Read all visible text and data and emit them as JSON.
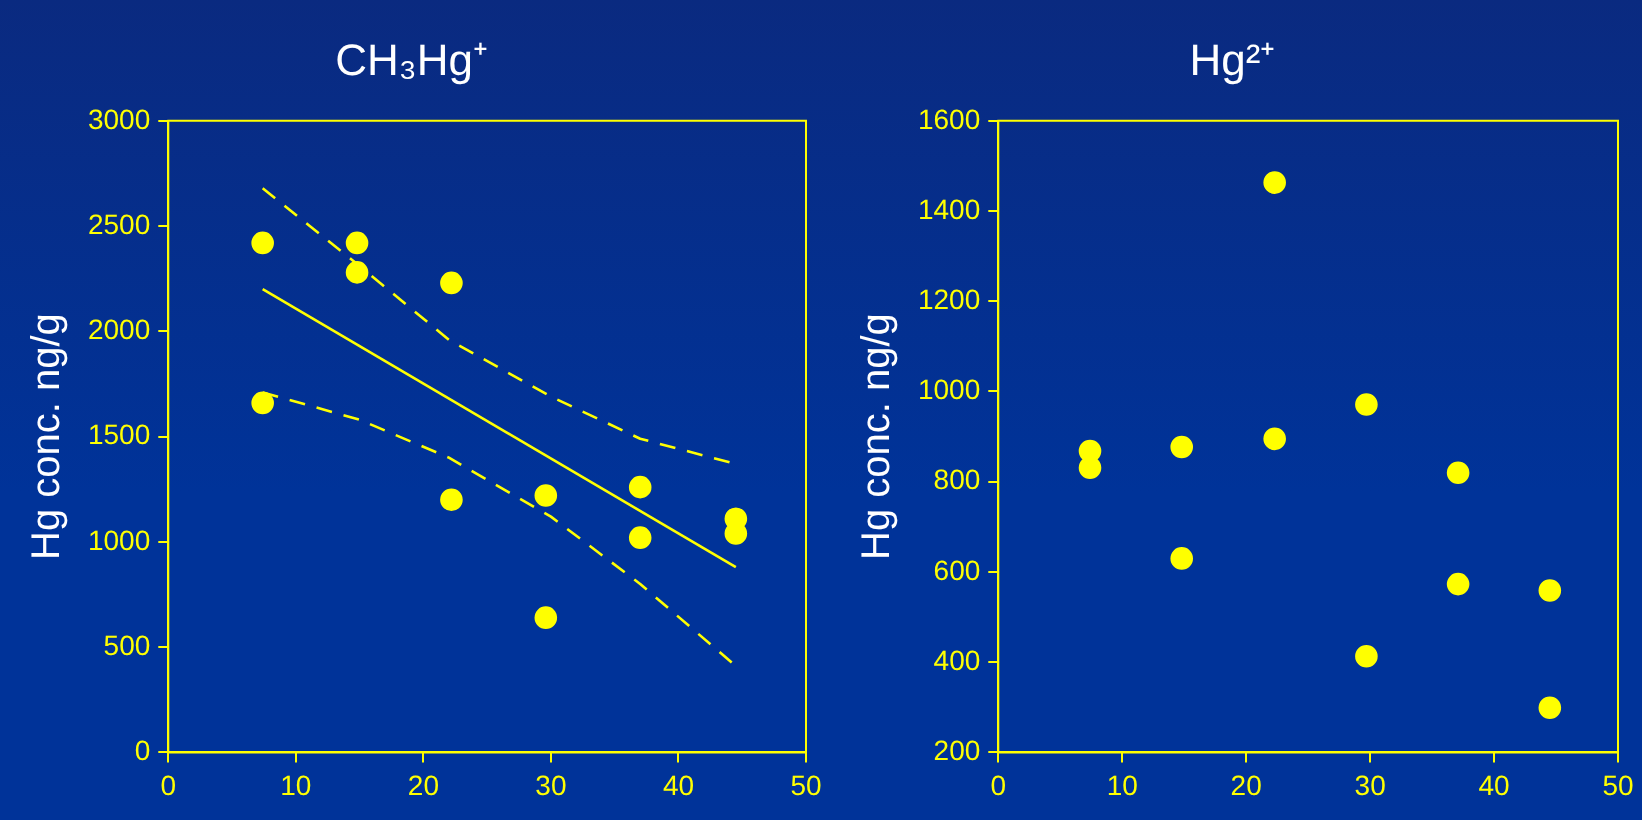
{
  "chart_data": [
    {
      "type": "scatter",
      "title": "CH₃Hg⁺",
      "ylabel": "Hg conc. ng/g",
      "xlim": [
        0,
        50
      ],
      "xticks": [
        0,
        10,
        20,
        30,
        40,
        50
      ],
      "ylim": [
        0,
        3000
      ],
      "yticks": [
        0,
        500,
        1000,
        1500,
        2000,
        2500,
        3000
      ],
      "grid": false,
      "legend": false,
      "series": [
        {
          "type": "scatter",
          "color": "#ffff00",
          "marker": "circle",
          "x": [
            7.4,
            7.4,
            14.8,
            14.8,
            22.2,
            22.2,
            29.6,
            29.6,
            37,
            37,
            44.5,
            44.5
          ],
          "values": [
            2420,
            1660,
            2420,
            2280,
            2230,
            1200,
            1220,
            640,
            1260,
            1020,
            1110,
            1040
          ]
        },
        {
          "type": "line",
          "color": "#ffff00",
          "marker": "none",
          "line_style": "solid",
          "x": [
            7.4,
            44.5
          ],
          "values": [
            2200,
            880
          ]
        },
        {
          "type": "line",
          "color": "#ffff00",
          "marker": "none",
          "line_style": "dashed",
          "x": [
            7.4,
            15,
            22,
            30,
            37,
            44.5
          ],
          "values": [
            2680,
            2310,
            1960,
            1690,
            1490,
            1370
          ]
        },
        {
          "type": "line",
          "color": "#ffff00",
          "marker": "none",
          "line_style": "dashed",
          "x": [
            7.4,
            15,
            22,
            30,
            37,
            44.5
          ],
          "values": [
            1710,
            1580,
            1400,
            1120,
            800,
            410
          ]
        }
      ]
    },
    {
      "type": "scatter",
      "title": "Hg²⁺",
      "ylabel": "Hg conc. ng/g",
      "xlim": [
        0,
        50
      ],
      "xticks": [
        0,
        10,
        20,
        30,
        40,
        50
      ],
      "ylim": [
        200,
        1600
      ],
      "yticks": [
        200,
        400,
        600,
        800,
        1000,
        1200,
        1400,
        1600
      ],
      "grid": false,
      "legend": false,
      "series": [
        {
          "type": "scatter",
          "color": "#ffff00",
          "marker": "circle",
          "x": [
            7.4,
            7.4,
            14.8,
            14.8,
            22.3,
            22.3,
            29.7,
            29.7,
            37.1,
            37.1,
            44.5,
            44.5
          ],
          "values": [
            868,
            831,
            877,
            630,
            1463,
            895,
            971,
            413,
            820,
            573,
            559,
            299
          ]
        }
      ]
    }
  ]
}
